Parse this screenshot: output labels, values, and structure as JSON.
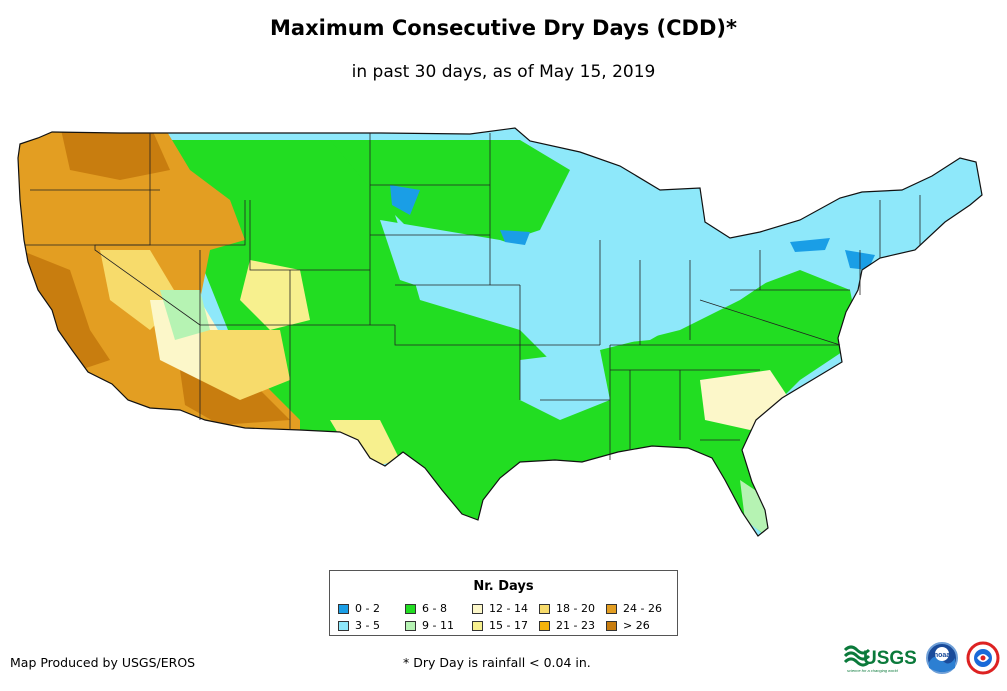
{
  "title": "Maximum Consecutive Dry Days (CDD)*",
  "subtitle": "in past 30 days, as of May 15, 2019",
  "legend": {
    "title": "Nr. Days",
    "items": [
      {
        "label": "0 - 2",
        "color": "#1a9ee6"
      },
      {
        "label": "3 - 5",
        "color": "#8ee8fa"
      },
      {
        "label": "6 - 8",
        "color": "#22dd22"
      },
      {
        "label": "9 - 11",
        "color": "#b6f3b3"
      },
      {
        "label": "12 - 14",
        "color": "#fcf7c9"
      },
      {
        "label": "15 - 17",
        "color": "#f7f08e"
      },
      {
        "label": "18 - 20",
        "color": "#f7db6b"
      },
      {
        "label": "21 - 23",
        "color": "#f4b30c"
      },
      {
        "label": "24 - 26",
        "color": "#e39e22"
      },
      {
        "label": "> 26",
        "color": "#c87d0f"
      }
    ]
  },
  "footer": {
    "credit": "Map Produced by USGS/EROS",
    "note": "* Dry Day is rainfall < 0.04 in."
  },
  "logos": {
    "usgs_text": "USGS",
    "usgs_tagline": "science for a changing world",
    "noaa_text": "noaa"
  }
}
